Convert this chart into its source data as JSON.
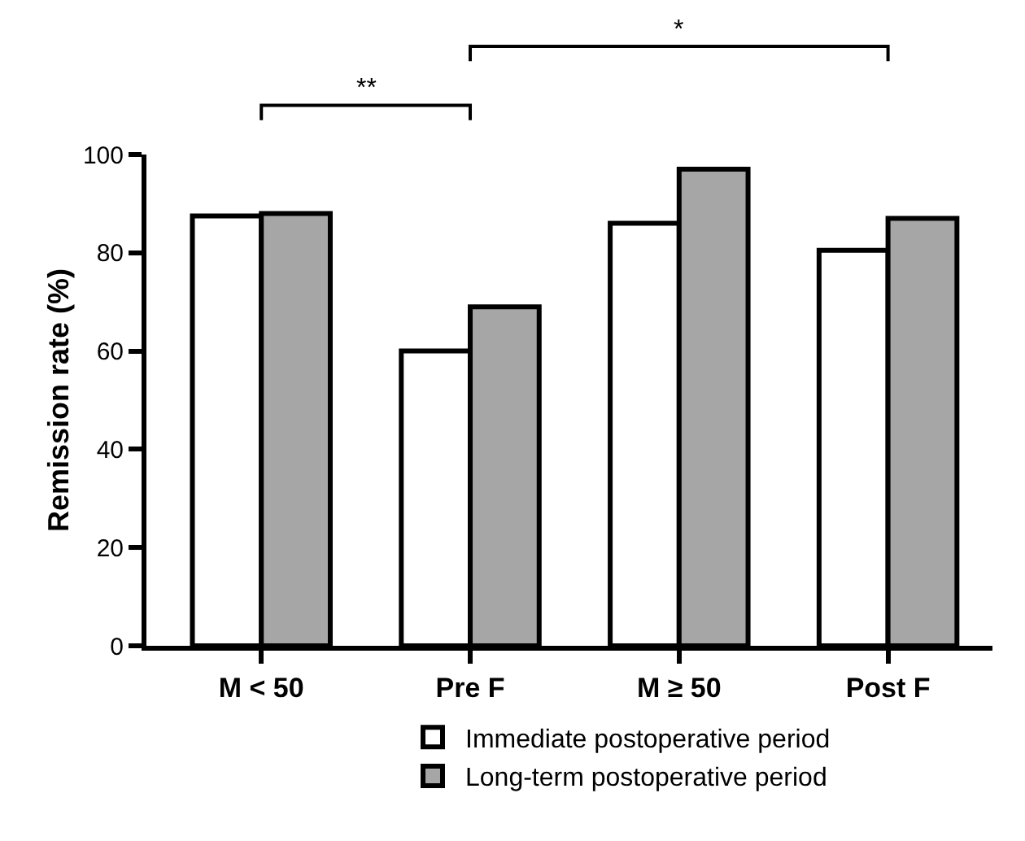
{
  "chart_data": {
    "type": "bar",
    "ylabel": "Remission rate (%)",
    "categories": [
      "M < 50",
      "Pre F",
      "M ≥ 50",
      "Post F"
    ],
    "series": [
      {
        "name": "Immediate postoperative period",
        "color": "#ffffff",
        "values": [
          87.5,
          60,
          86,
          80.5
        ]
      },
      {
        "name": "Long-term postoperative period",
        "color": "#a6a6a6",
        "values": [
          88,
          69,
          97,
          87
        ]
      }
    ],
    "ylim": [
      0,
      100
    ],
    "yticks": [
      0,
      20,
      40,
      60,
      80,
      100
    ],
    "grid": false,
    "legend": "bottom",
    "annotations": [
      "**",
      "*"
    ]
  }
}
